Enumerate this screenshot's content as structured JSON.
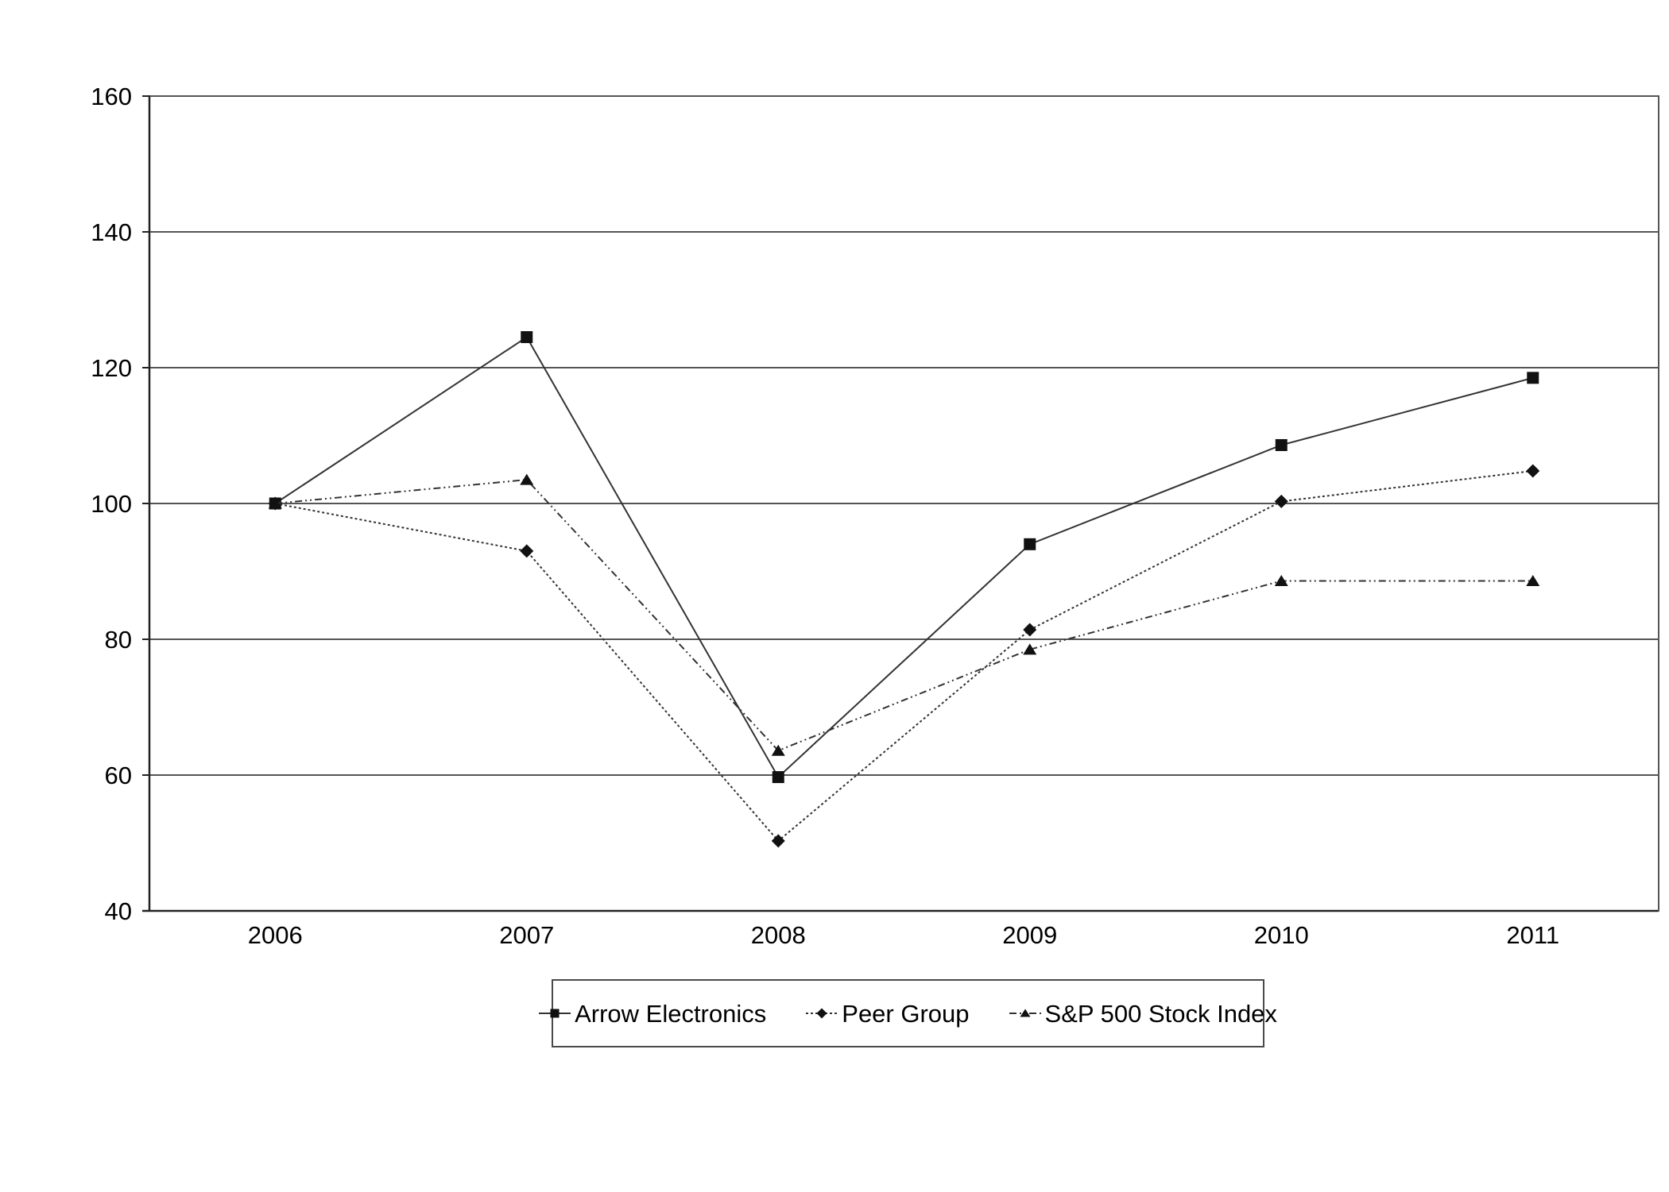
{
  "chart_data": {
    "type": "line",
    "title": "",
    "xlabel": "",
    "ylabel": "",
    "categories": [
      "2006",
      "2007",
      "2008",
      "2009",
      "2010",
      "2011"
    ],
    "series": [
      {
        "name": "Arrow Electronics",
        "marker": "square",
        "line_style": "solid",
        "values": [
          100,
          124.5,
          59.7,
          94.0,
          108.6,
          118.5
        ]
      },
      {
        "name": "Peer Group",
        "marker": "diamond",
        "line_style": "dotted",
        "values": [
          100,
          93.0,
          50.3,
          81.4,
          100.3,
          104.8
        ]
      },
      {
        "name": "S&P 500 Stock Index",
        "marker": "triangle",
        "line_style": "dash-dot-dot",
        "values": [
          100,
          103.5,
          63.6,
          78.5,
          88.6,
          88.6
        ]
      }
    ],
    "ylim": [
      40,
      160
    ],
    "y_tick_step": 20,
    "y_ticks": [
      160,
      140,
      120,
      100,
      80,
      60,
      40
    ],
    "grid": "horizontal",
    "legend_position": "bottom",
    "colors": {
      "line": "#333333",
      "marker": "#111111",
      "grid": "#555555",
      "axis": "#222222",
      "legend_border": "#4a4a4a",
      "text": "#000000",
      "background": "#ffffff"
    }
  }
}
